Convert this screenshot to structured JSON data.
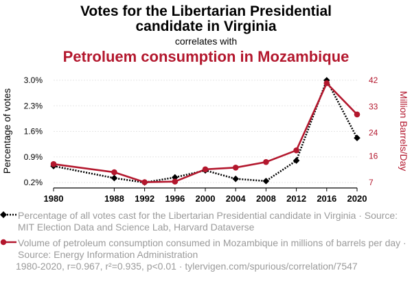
{
  "chart_data": {
    "type": "line",
    "title": "Votes for the Libertarian Presidential candidate in Virginia",
    "title_lines": [
      "Votes for the Libertarian Presidential",
      "candidate in Virginia"
    ],
    "connector": "correlates with",
    "title_second": "Petroluem consumption in Mozambique",
    "x": [
      1980,
      1988,
      1992,
      1996,
      2000,
      2004,
      2008,
      2012,
      2016,
      2020
    ],
    "x_labels": [
      "1980",
      "1988",
      "1992",
      "1996",
      "2000",
      "2004",
      "2008",
      "2012",
      "2016",
      "2020"
    ],
    "series": [
      {
        "name": "Percentage of all votes cast for the Libertarian Presidential candidate in Virginia · Source: MIT Election Data and Science Lab, Harvard Dataverse",
        "axis": "left",
        "color": "#000000",
        "style": "dotted",
        "marker": "diamond",
        "values": [
          0.65,
          0.32,
          0.2,
          0.34,
          0.53,
          0.3,
          0.24,
          0.8,
          3.0,
          1.42
        ]
      },
      {
        "name": "Volume of petroleum consumption consumed in Mozambique in millions of barrels per day · Source: Energy Information Administration",
        "axis": "right",
        "color": "#b3172d",
        "style": "solid",
        "marker": "circle",
        "values": [
          13.3,
          10.5,
          7.1,
          7.3,
          11.5,
          12.1,
          14.0,
          18.0,
          41.0,
          30.3
        ]
      }
    ],
    "y_left": {
      "label": "Percentage of votes",
      "ylim": [
        0.2,
        3.0
      ],
      "ticks": [
        0.2,
        0.9,
        1.6,
        2.3,
        3.0
      ],
      "tick_labels": [
        "0.2%",
        "0.9%",
        "1.6%",
        "2.3%",
        "3.0%"
      ],
      "color": "#000000"
    },
    "y_right": {
      "label": "Million Barrels/Day",
      "ylim": [
        7,
        42
      ],
      "ticks": [
        7,
        16,
        24,
        33,
        42
      ],
      "tick_labels": [
        "7",
        "16",
        "24",
        "33",
        "42"
      ],
      "color": "#b3172d"
    },
    "grid": true
  },
  "legend": {
    "items": [
      {
        "text": "Percentage of all votes cast for the Libertarian Presidential candidate in Virginia · Source: MIT Election Data and Science Lab, Harvard Dataverse"
      },
      {
        "text": "Volume of petroleum consumption consumed in Mozambique in millions of barrels per day · Source: Energy Information Administration"
      }
    ]
  },
  "footer": {
    "text": "1980-2020, r=0.967, r²=0.935, p<0.01 · tylervigen.com/spurious/correlation/7547"
  },
  "colors": {
    "primary": "#000000",
    "secondary": "#b3172d",
    "grid": "#e6e6e6",
    "muted": "#9a9a9a"
  }
}
